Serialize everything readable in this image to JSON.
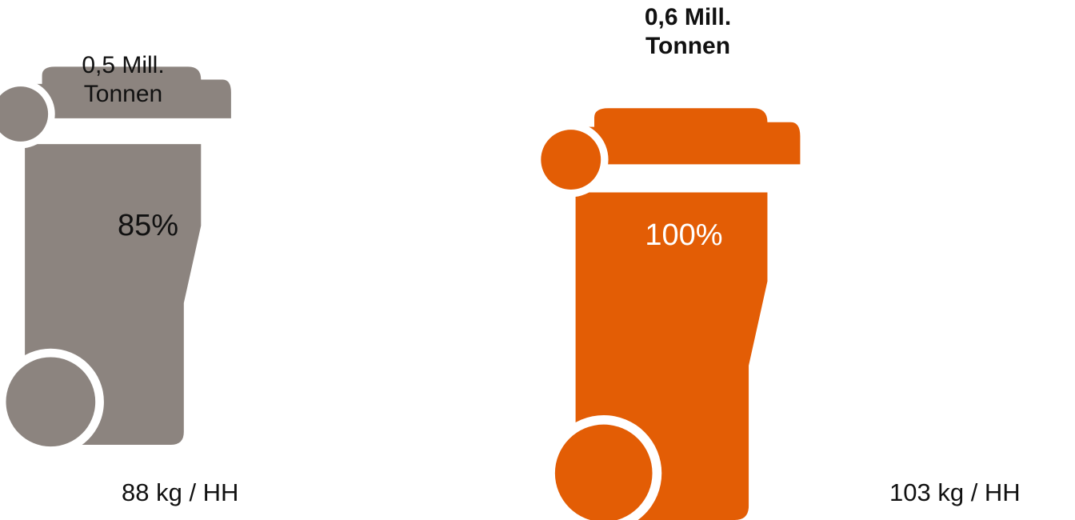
{
  "chart_data": {
    "type": "pictogram",
    "unit": "Mill. Tonnen",
    "items": [
      {
        "amount_label_line1": "0,5 Mill.",
        "amount_label_line2": "Tonnen",
        "amount": 0.5,
        "percent": 85,
        "percent_label": "85%",
        "per_household_label": "88 kg / HH",
        "per_household": 88,
        "color": "#8c847f",
        "percent_color": "#111111",
        "emphasized": false
      },
      {
        "amount_label_line1": "0,6 Mill.",
        "amount_label_line2": "Tonnen",
        "amount": 0.6,
        "percent": 100,
        "percent_label": "100%",
        "per_household_label": "103 kg / HH",
        "per_household": 103,
        "color": "#e35d05",
        "percent_color": "#ffffff",
        "emphasized": true
      }
    ]
  }
}
